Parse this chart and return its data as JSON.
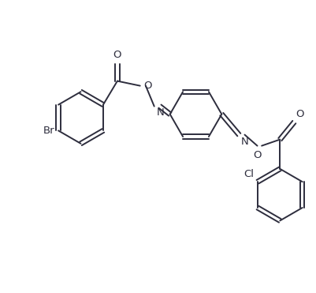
{
  "bg_color": "#ffffff",
  "bond_color": "#2d2d3d",
  "label_color": "#2d2d3d",
  "line_width": 1.4,
  "font_size": 9.5,
  "figsize": [
    4.01,
    3.71
  ],
  "dpi": 100,
  "xlim": [
    0,
    10
  ],
  "ylim": [
    0,
    9.275
  ]
}
